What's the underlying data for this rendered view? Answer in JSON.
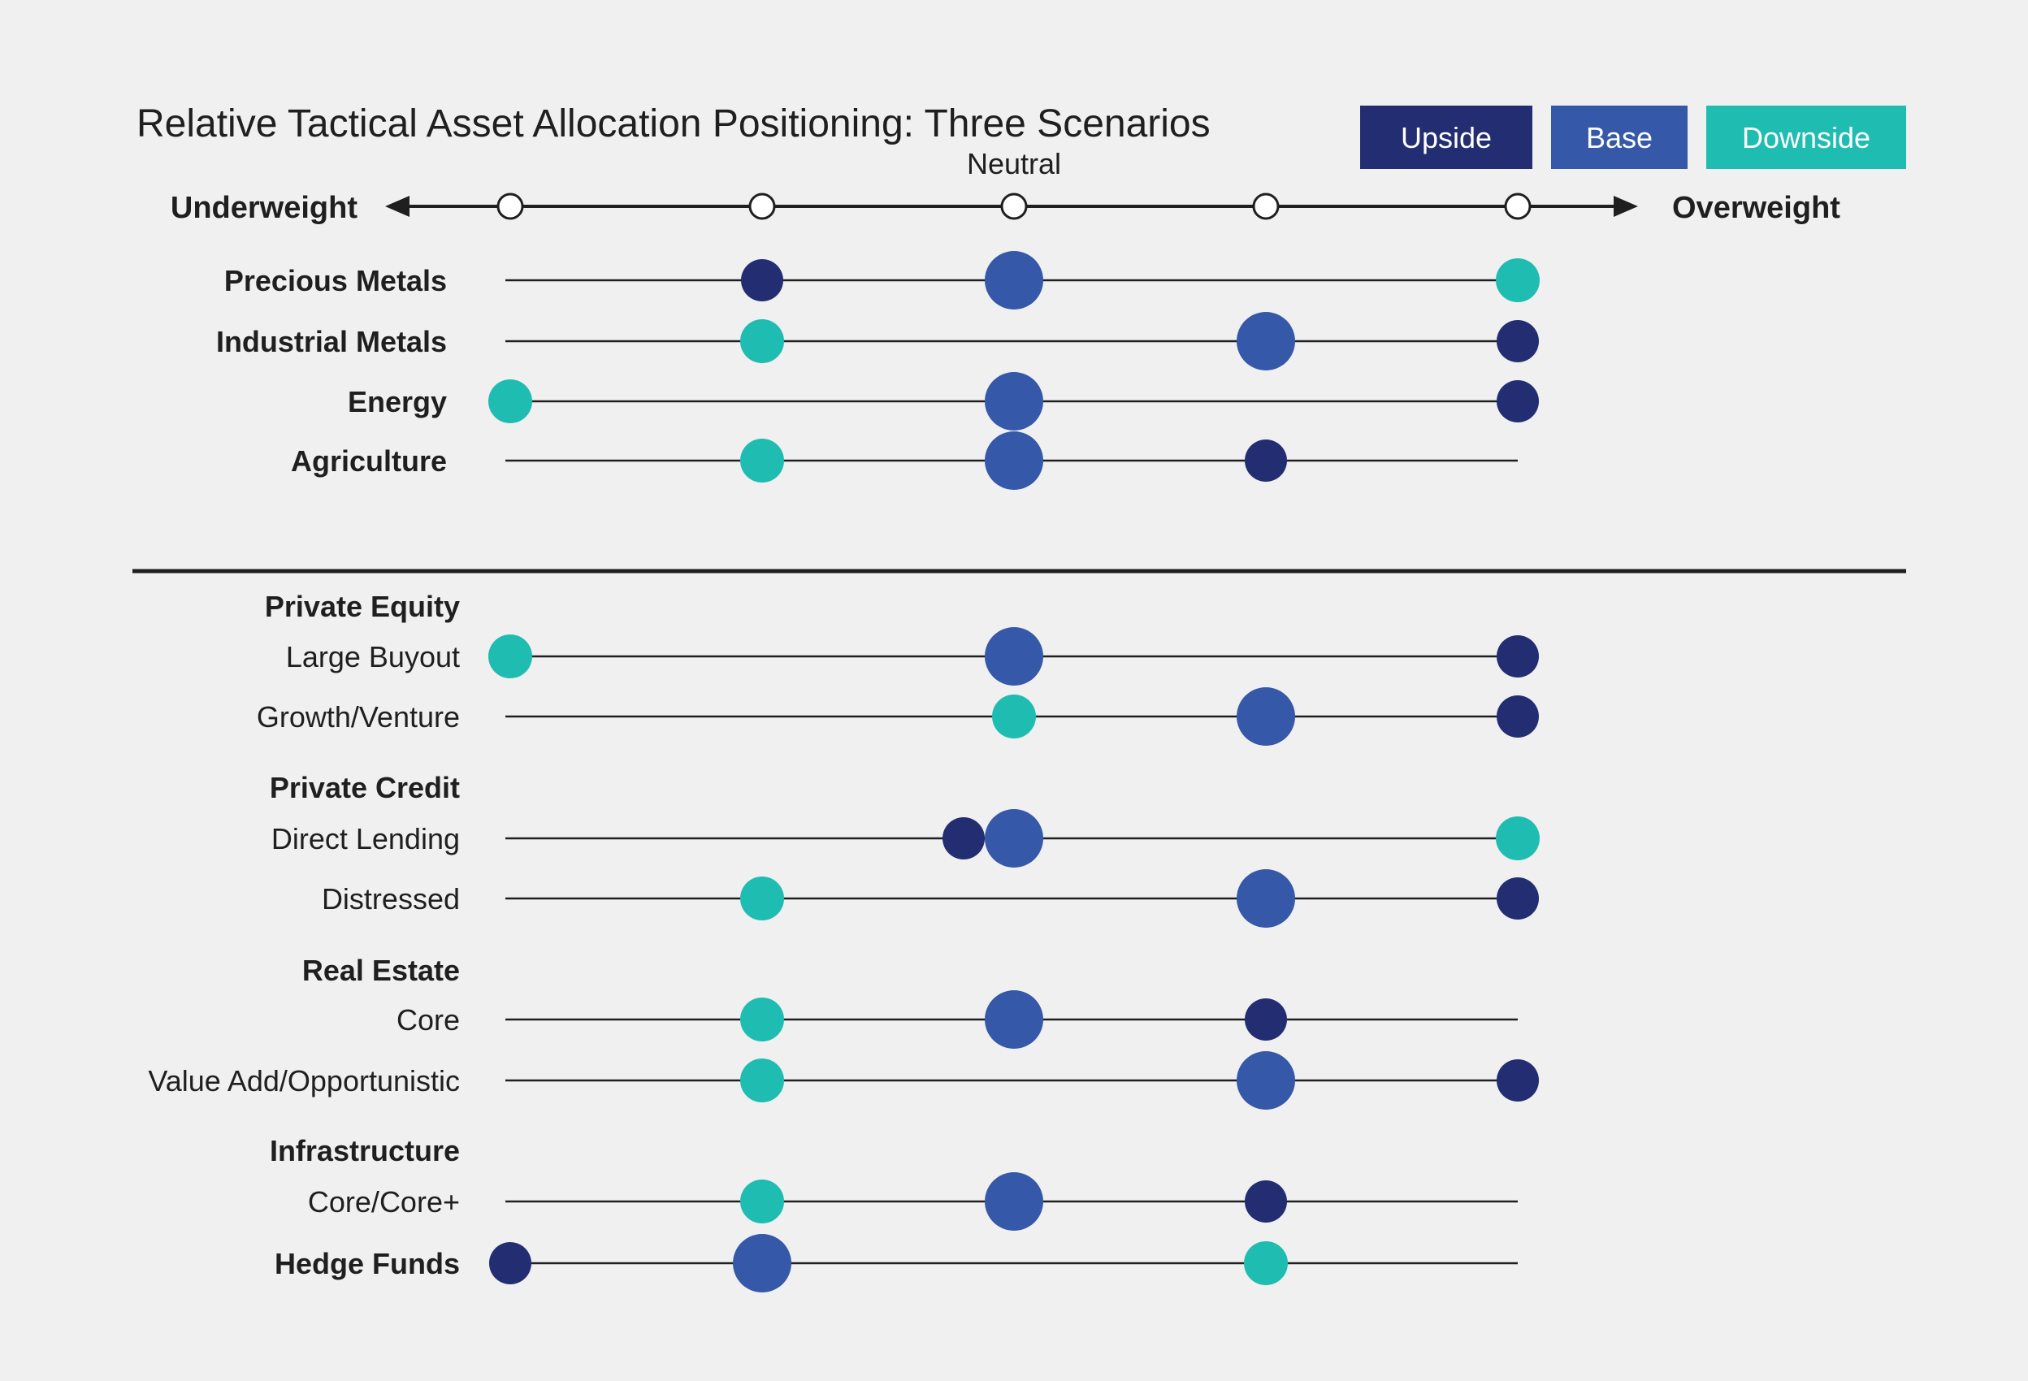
{
  "title": "Relative Tactical Asset Allocation Positioning: Three Scenarios",
  "legend": [
    {
      "label": "Upside",
      "color": "#232e72"
    },
    {
      "label": "Base",
      "color": "#3558a8"
    },
    {
      "label": "Downside",
      "color": "#1fbcb2"
    }
  ],
  "scale": {
    "neutral_label": "Neutral",
    "left_label": "Underweight",
    "right_label": "Overweight",
    "levels": [
      -2,
      -1,
      0,
      1,
      2
    ]
  },
  "chart_data": {
    "type": "scatter",
    "title": "Relative Tactical Asset Allocation Positioning: Three Scenarios",
    "x_range": [
      -2,
      2
    ],
    "x_description": "relative positioning level: -2 most underweight, 0 neutral, +2 most overweight",
    "series": [
      {
        "name": "Upside",
        "color": "#232e72"
      },
      {
        "name": "Base",
        "color": "#3558a8"
      },
      {
        "name": "Downside",
        "color": "#1fbcb2"
      }
    ],
    "groups": [
      {
        "heading": "",
        "rows": [
          {
            "label": "Precious Metals",
            "bold": true,
            "upside": -1,
            "base": 0,
            "downside": 2
          },
          {
            "label": "Industrial Metals",
            "bold": true,
            "upside": 2,
            "base": 1,
            "downside": -1
          },
          {
            "label": "Energy",
            "bold": true,
            "upside": 2,
            "base": 0,
            "downside": -2
          },
          {
            "label": "Agriculture",
            "bold": true,
            "upside": 1,
            "base": 0,
            "downside": -1
          }
        ]
      },
      {
        "heading": "Private Equity",
        "rows": [
          {
            "label": "Large Buyout",
            "bold": false,
            "upside": 2,
            "base": 0,
            "downside": -2
          },
          {
            "label": "Growth/Venture",
            "bold": false,
            "upside": 2,
            "base": 1,
            "downside": 0
          }
        ]
      },
      {
        "heading": "Private Credit",
        "rows": [
          {
            "label": "Direct Lending",
            "bold": false,
            "upside": -0.2,
            "base": 0,
            "downside": 2
          },
          {
            "label": "Distressed",
            "bold": false,
            "upside": 2,
            "base": 1,
            "downside": -1
          }
        ]
      },
      {
        "heading": "Real Estate",
        "rows": [
          {
            "label": "Core",
            "bold": false,
            "upside": 1,
            "base": 0,
            "downside": -1
          },
          {
            "label": "Value Add/Opportunistic",
            "bold": false,
            "upside": 2,
            "base": 1,
            "downside": -1
          }
        ]
      },
      {
        "heading": "Infrastructure",
        "rows": [
          {
            "label": "Core/Core+",
            "bold": false,
            "upside": 1,
            "base": 0,
            "downside": -1
          }
        ]
      },
      {
        "heading": "",
        "rows": [
          {
            "label": "Hedge Funds",
            "bold": true,
            "upside": -2,
            "base": -1,
            "downside": 1
          }
        ]
      }
    ]
  }
}
